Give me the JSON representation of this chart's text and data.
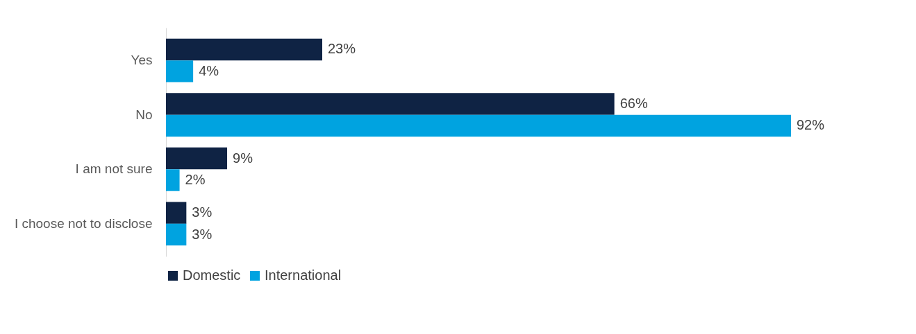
{
  "chart_data": {
    "type": "bar",
    "orientation": "horizontal",
    "categories": [
      "Yes",
      "No",
      "I am not sure",
      "I choose not to disclose"
    ],
    "series": [
      {
        "name": "Domestic",
        "color": "#0f2344",
        "values": [
          23,
          66,
          9,
          3
        ],
        "value_labels": [
          "23%",
          "66%",
          "9%",
          "3%"
        ]
      },
      {
        "name": "International",
        "color": "#00a3e0",
        "values": [
          4,
          92,
          2,
          3
        ],
        "value_labels": [
          "4%",
          "92%",
          "2%",
          "3%"
        ]
      }
    ],
    "legend": "bottom"
  }
}
